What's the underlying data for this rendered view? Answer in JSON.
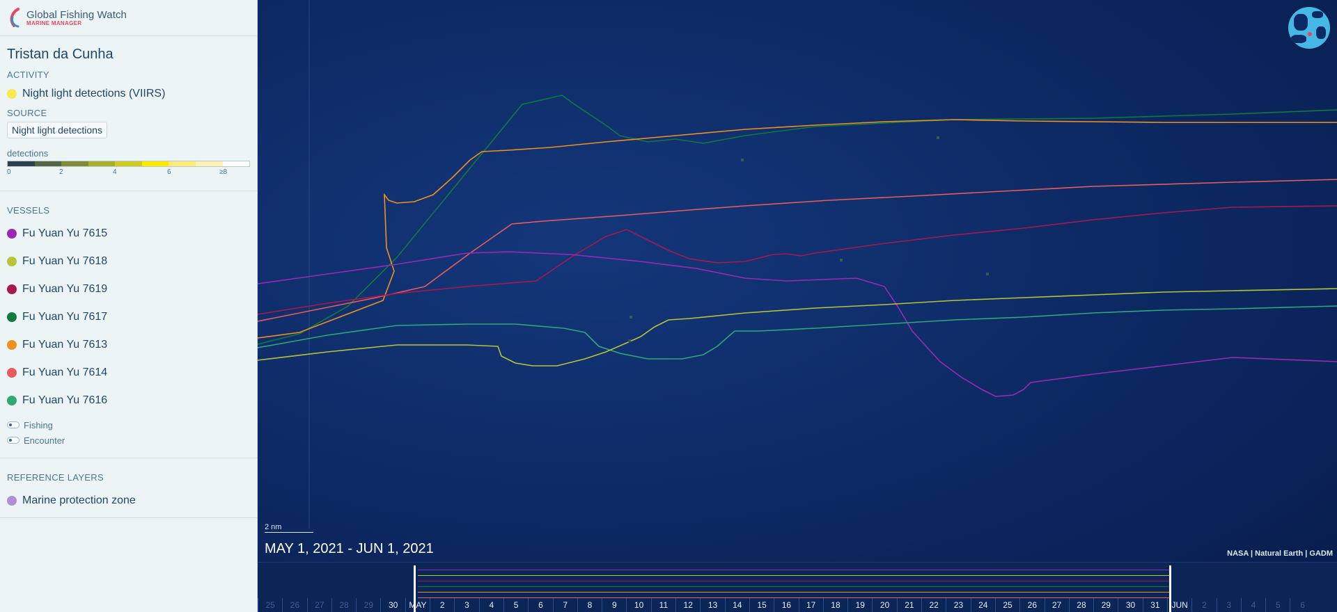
{
  "brand": {
    "name": "Global Fishing Watch",
    "product": "MARINE MANAGER"
  },
  "area": {
    "title": "Tristan da Cunha"
  },
  "activity": {
    "label": "ACTIVITY",
    "layer": {
      "name": "Night light detections (VIIRS)",
      "color": "#fae84d"
    }
  },
  "source": {
    "label": "SOURCE",
    "value": "Night light detections"
  },
  "legend": {
    "label": "detections",
    "colors": [
      "#2d3f4d",
      "#556441",
      "#808c36",
      "#a9b02c",
      "#cfcc1f",
      "#ffe800",
      "#ffe977",
      "#fff3b3",
      "#ffffff"
    ],
    "ticks": [
      "0",
      "2",
      "4",
      "6",
      "≥8"
    ]
  },
  "vessels": {
    "label": "VESSELS",
    "items": [
      {
        "name": "Fu Yuan Yu 7615",
        "color": "#9b29b4"
      },
      {
        "name": "Fu Yuan Yu 7618",
        "color": "#b8c437"
      },
      {
        "name": "Fu Yuan Yu 7619",
        "color": "#a8184f"
      },
      {
        "name": "Fu Yuan Yu 7617",
        "color": "#0f7a3d"
      },
      {
        "name": "Fu Yuan Yu 7613",
        "color": "#f2901e"
      },
      {
        "name": "Fu Yuan Yu 7614",
        "color": "#e85c5c"
      },
      {
        "name": "Fu Yuan Yu 7616",
        "color": "#2fa87a"
      }
    ],
    "toggles": [
      "Fishing",
      "Encounter"
    ]
  },
  "reference": {
    "label": "REFERENCE LAYERS",
    "layer": {
      "name": "Marine protection zone",
      "color": "#b08ed8"
    }
  },
  "map": {
    "scale": "2 nm",
    "date_range": "MAY 1, 2021 - JUN 1, 2021",
    "attribution": "NASA | Natural Earth | GADM"
  },
  "timebar": {
    "days": [
      "25",
      "26",
      "27",
      "28",
      "29",
      "30",
      "MAY",
      "2",
      "3",
      "4",
      "5",
      "6",
      "7",
      "8",
      "9",
      "10",
      "11",
      "12",
      "13",
      "14",
      "15",
      "16",
      "17",
      "18",
      "19",
      "20",
      "21",
      "22",
      "23",
      "24",
      "25",
      "26",
      "27",
      "28",
      "29",
      "30",
      "31",
      "JUN",
      "2",
      "3",
      "4",
      "5",
      "6"
    ],
    "dim_days": [
      0,
      1,
      2,
      3,
      4,
      38,
      39,
      40,
      41,
      42
    ]
  }
}
